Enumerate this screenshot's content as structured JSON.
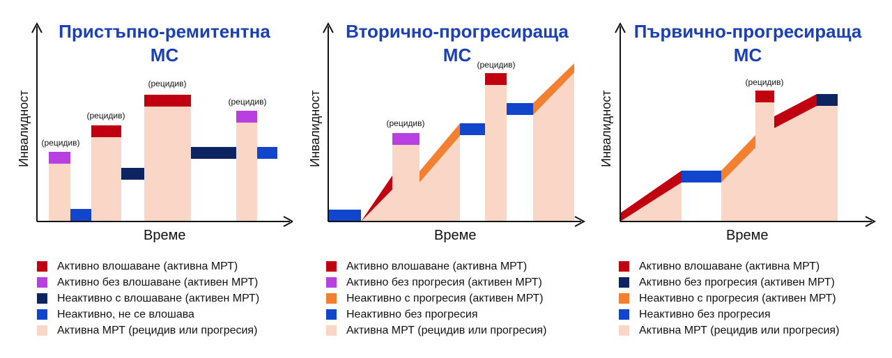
{
  "colors": {
    "active_relapse": "#c00010",
    "active_purple": "#b840e0",
    "inactive_navy": "#0c2460",
    "inactive_blue": "#1045cc",
    "progression_orange": "#f28030",
    "mri_peach": "#fad6c6",
    "axis": "#111111",
    "title": "#1a3fb8"
  },
  "charts": [
    {
      "id": "rrms",
      "title": [
        "Пристъпно-ремитентна",
        "МС"
      ],
      "ylabel": "Инвалидност",
      "xlabel": "Време",
      "relapse_label": "(рецидив)",
      "legend": [
        {
          "color": "active_relapse",
          "label": "Активно влошаване (активна МРТ)"
        },
        {
          "color": "active_purple",
          "label": "Активно без влошаване (активен МРТ)"
        },
        {
          "color": "inactive_navy",
          "label": "Неактивно с влошаване (активен МРТ)"
        },
        {
          "color": "inactive_blue",
          "label": "Неактивно, не се влошава"
        },
        {
          "color": "mri_peach",
          "label": "Активна МРТ (рецидив или прогресия)"
        }
      ]
    },
    {
      "id": "spms",
      "title": [
        "Вторично-прогресираща",
        "МС"
      ],
      "ylabel": "Инвалидност",
      "xlabel": "Време",
      "relapse_label": "(рецидив)",
      "legend": [
        {
          "color": "active_relapse",
          "label": "Активно влошаване (активна МРТ)"
        },
        {
          "color": "active_purple",
          "label": "Активно без прогресия (активен МРТ)"
        },
        {
          "color": "progression_orange",
          "label": "Неактивно с прогресия (активен МРТ)"
        },
        {
          "color": "inactive_blue",
          "label": "Неактивно без прогресия"
        },
        {
          "color": "mri_peach",
          "label": "Активна МРТ (рецидив или прогресия)"
        }
      ]
    },
    {
      "id": "ppms",
      "title": [
        "Първично-прогресираща",
        "МС"
      ],
      "ylabel": "Инвалидност",
      "xlabel": "Време",
      "relapse_label": "(рецидив)",
      "legend": [
        {
          "color": "active_relapse",
          "label": "Активно влошаване (активна МРТ)"
        },
        {
          "color": "inactive_navy",
          "label": "Активно без прогресия (активен МРТ)"
        },
        {
          "color": "progression_orange",
          "label": "Неактивно с прогресия (активен МРТ)"
        },
        {
          "color": "inactive_blue",
          "label": "Неактивно без прогресия"
        },
        {
          "color": "mri_peach",
          "label": "Активна МРТ (рецидив или прогресия)"
        }
      ]
    }
  ],
  "chart_data": [
    {
      "type": "area",
      "title": "Пристъпно-ремитентна МС",
      "xlabel": "Време",
      "ylabel": "Инвалидност",
      "note": "Schematic illustration, no numeric axis values",
      "episodes": [
        "active_purple",
        "inactive_blue",
        "active_relapse",
        "inactive_navy",
        "active_relapse",
        "inactive_navy",
        "active_purple",
        "inactive_blue"
      ],
      "annotations": [
        "(рецидив)",
        "(рецидив)",
        "(рецидив)",
        "(рецидив)"
      ]
    },
    {
      "type": "area",
      "title": "Вторично-прогресираща МС",
      "xlabel": "Време",
      "ylabel": "Инвалидност",
      "note": "Schematic illustration, no numeric axis values",
      "episodes": [
        "inactive_blue",
        "active_relapse",
        "active_purple",
        "progression_orange",
        "inactive_blue",
        "active_relapse",
        "inactive_blue",
        "progression_orange"
      ],
      "annotations": [
        "(рецидив)",
        "(рецидив)"
      ]
    },
    {
      "type": "area",
      "title": "Първично-прогресираща МС",
      "xlabel": "Време",
      "ylabel": "Инвалидност",
      "note": "Schematic illustration, no numeric axis values",
      "episodes": [
        "active_relapse",
        "inactive_blue",
        "progression_orange",
        "active_relapse",
        "active_relapse",
        "inactive_navy"
      ],
      "annotations": [
        "(рецидив)"
      ]
    }
  ]
}
